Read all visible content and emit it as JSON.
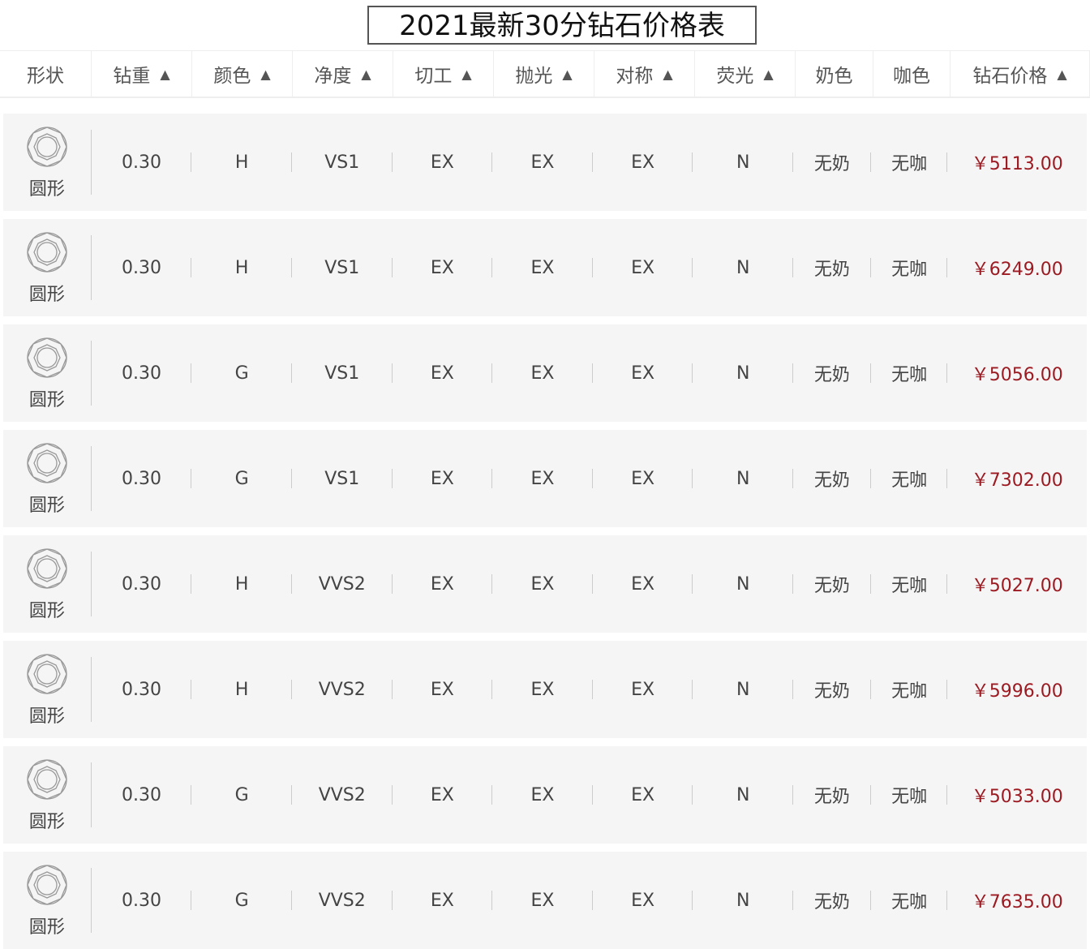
{
  "title": "2021最新30分钻石价格表",
  "headers": [
    {
      "label": "形状",
      "sortable": false
    },
    {
      "label": "钻重",
      "sortable": true
    },
    {
      "label": "颜色",
      "sortable": true
    },
    {
      "label": "净度",
      "sortable": true
    },
    {
      "label": "切工",
      "sortable": true
    },
    {
      "label": "抛光",
      "sortable": true
    },
    {
      "label": "对称",
      "sortable": true
    },
    {
      "label": "荧光",
      "sortable": true
    },
    {
      "label": "奶色",
      "sortable": false
    },
    {
      "label": "咖色",
      "sortable": false
    },
    {
      "label": "钻石价格",
      "sortable": true
    }
  ],
  "sort_arrow": "▲",
  "price_color": "#9c1a22",
  "rows": [
    {
      "shape": "圆形",
      "weight": "0.30",
      "color": "H",
      "clarity": "VS1",
      "cut": "EX",
      "polish": "EX",
      "symmetry": "EX",
      "fluorescence": "N",
      "milky": "无奶",
      "brown": "无咖",
      "price": "￥5113.00"
    },
    {
      "shape": "圆形",
      "weight": "0.30",
      "color": "H",
      "clarity": "VS1",
      "cut": "EX",
      "polish": "EX",
      "symmetry": "EX",
      "fluorescence": "N",
      "milky": "无奶",
      "brown": "无咖",
      "price": "￥6249.00"
    },
    {
      "shape": "圆形",
      "weight": "0.30",
      "color": "G",
      "clarity": "VS1",
      "cut": "EX",
      "polish": "EX",
      "symmetry": "EX",
      "fluorescence": "N",
      "milky": "无奶",
      "brown": "无咖",
      "price": "￥5056.00"
    },
    {
      "shape": "圆形",
      "weight": "0.30",
      "color": "G",
      "clarity": "VS1",
      "cut": "EX",
      "polish": "EX",
      "symmetry": "EX",
      "fluorescence": "N",
      "milky": "无奶",
      "brown": "无咖",
      "price": "￥7302.00"
    },
    {
      "shape": "圆形",
      "weight": "0.30",
      "color": "H",
      "clarity": "VVS2",
      "cut": "EX",
      "polish": "EX",
      "symmetry": "EX",
      "fluorescence": "N",
      "milky": "无奶",
      "brown": "无咖",
      "price": "￥5027.00"
    },
    {
      "shape": "圆形",
      "weight": "0.30",
      "color": "H",
      "clarity": "VVS2",
      "cut": "EX",
      "polish": "EX",
      "symmetry": "EX",
      "fluorescence": "N",
      "milky": "无奶",
      "brown": "无咖",
      "price": "￥5996.00"
    },
    {
      "shape": "圆形",
      "weight": "0.30",
      "color": "G",
      "clarity": "VVS2",
      "cut": "EX",
      "polish": "EX",
      "symmetry": "EX",
      "fluorescence": "N",
      "milky": "无奶",
      "brown": "无咖",
      "price": "￥5033.00"
    },
    {
      "shape": "圆形",
      "weight": "0.30",
      "color": "G",
      "clarity": "VVS2",
      "cut": "EX",
      "polish": "EX",
      "symmetry": "EX",
      "fluorescence": "N",
      "milky": "无奶",
      "brown": "无咖",
      "price": "￥7635.00"
    }
  ]
}
